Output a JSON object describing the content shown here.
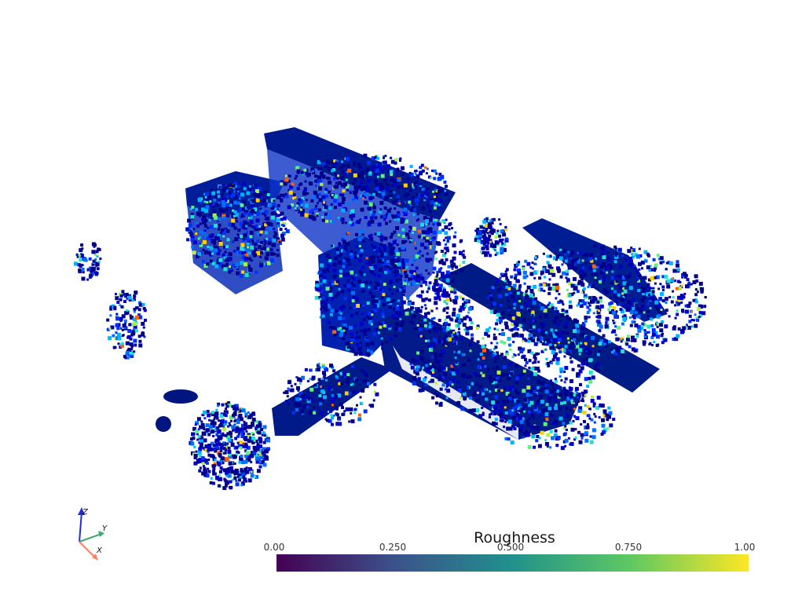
{
  "viewer": {
    "background": "#ffffff"
  },
  "scalar_bar": {
    "title": "Roughness",
    "ticks": [
      "0.00",
      "0.250",
      "0.500",
      "0.750",
      "1.00"
    ],
    "colormap": "viridis",
    "colors": [
      "#440154",
      "#3b528b",
      "#21918c",
      "#5ec962",
      "#fde725"
    ]
  },
  "orientation_axes": {
    "x_label": "X",
    "y_label": "Y",
    "z_label": "Z",
    "x_color": "#ff7f66",
    "y_color": "#3caa6e",
    "z_color": "#1f2fd0"
  },
  "pointcloud": {
    "colormap": "jet",
    "dominant_color": "#00008b"
  }
}
